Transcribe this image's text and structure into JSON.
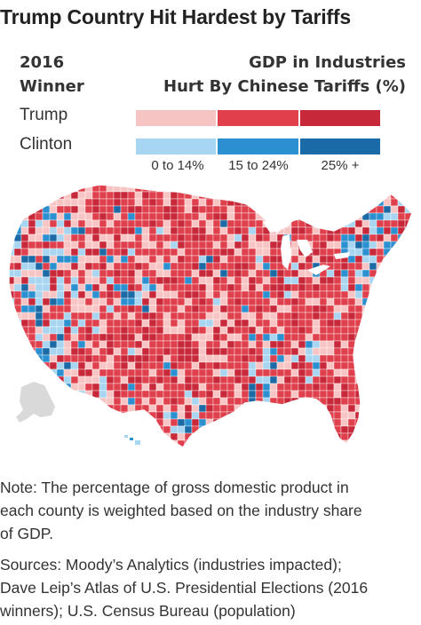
{
  "title": "Trump Country Hit Hardest by Tariffs",
  "legend": {
    "winner_heading_line1": "2016",
    "winner_heading_line2": "Winner",
    "gdp_heading_line1": "GDP in Industries",
    "gdp_heading_line2": "Hurt By Chinese Tariffs (%)",
    "rows": [
      {
        "label": "Trump",
        "colors": [
          "#f7c4c4",
          "#e0404c",
          "#c8293a"
        ]
      },
      {
        "label": "Clinton",
        "colors": [
          "#a6d6f2",
          "#2c8fd0",
          "#1b6aa8"
        ]
      }
    ],
    "bins": [
      "0 to 14%",
      "15 to 24%",
      "25% +"
    ]
  },
  "map": {
    "colors": {
      "trump_low": "#f7c4c4",
      "trump_mid": "#e0404c",
      "trump_high": "#c8293a",
      "clinton_low": "#a6d6f2",
      "clinton_mid": "#2c8fd0",
      "clinton_high": "#1b6aa8",
      "no_data": "#d9d9d9"
    }
  },
  "note": {
    "line1": "Note: The percentage of gross domestic product in",
    "line2": "each county is weighted based on the industry share",
    "line3": "of GDP."
  },
  "sources": {
    "line1": "Sources: Moody’s Analytics (industries impacted);",
    "line2": "Dave Leip’s Atlas of U.S. Presidential Elections (2016",
    "line3": "winners); U.S. Census Bureau (population)"
  }
}
